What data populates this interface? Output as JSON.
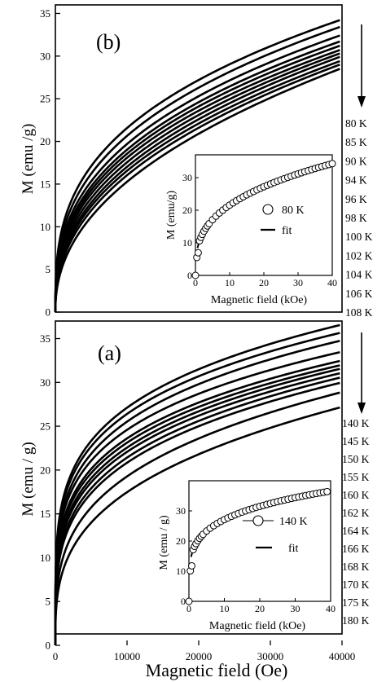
{
  "chart_data": [
    {
      "type": "line",
      "panel_label": "(b)",
      "ylabel": "M (emu /g)",
      "xlabel": "",
      "xlim": [
        0,
        40000
      ],
      "ylim": [
        0,
        36
      ],
      "yticks": [
        "0",
        "5",
        "10",
        "15",
        "20",
        "25",
        "30",
        "35"
      ],
      "xticks": [],
      "series": [
        {
          "name": "80 K",
          "values": [
            [
              0,
              0
            ],
            [
              2000,
              12.3
            ],
            [
              5000,
              17.3
            ],
            [
              10000,
              21.8
            ],
            [
              20000,
              27.2
            ],
            [
              30000,
              31.1
            ],
            [
              40000,
              34.3
            ]
          ]
        },
        {
          "name": "85 K",
          "values": [
            [
              0,
              0
            ],
            [
              2000,
              11.6
            ],
            [
              5000,
              16.5
            ],
            [
              10000,
              21.0
            ],
            [
              20000,
              26.3
            ],
            [
              30000,
              30.3
            ],
            [
              40000,
              33.5
            ]
          ]
        },
        {
          "name": "90 K",
          "values": [
            [
              0,
              0
            ],
            [
              2000,
              10.9
            ],
            [
              5000,
              15.6
            ],
            [
              10000,
              20.0
            ],
            [
              20000,
              25.3
            ],
            [
              30000,
              29.3
            ],
            [
              40000,
              32.5
            ]
          ]
        },
        {
          "name": "94 K",
          "values": [
            [
              0,
              0
            ],
            [
              2000,
              10.3
            ],
            [
              5000,
              15.0
            ],
            [
              10000,
              19.3
            ],
            [
              20000,
              24.6
            ],
            [
              30000,
              28.6
            ],
            [
              40000,
              31.8
            ]
          ]
        },
        {
          "name": "96 K",
          "values": [
            [
              0,
              0
            ],
            [
              2000,
              9.8
            ],
            [
              5000,
              14.5
            ],
            [
              10000,
              18.8
            ],
            [
              20000,
              24.1
            ],
            [
              30000,
              28.1
            ],
            [
              40000,
              31.3
            ]
          ]
        },
        {
          "name": "98 K",
          "values": [
            [
              0,
              0
            ],
            [
              2000,
              9.3
            ],
            [
              5000,
              14.0
            ],
            [
              10000,
              18.3
            ],
            [
              20000,
              23.6
            ],
            [
              30000,
              27.6
            ],
            [
              40000,
              30.8
            ]
          ]
        },
        {
          "name": "100 K",
          "values": [
            [
              0,
              0
            ],
            [
              2000,
              8.8
            ],
            [
              5000,
              13.5
            ],
            [
              10000,
              17.8
            ],
            [
              20000,
              23.1
            ],
            [
              30000,
              27.1
            ],
            [
              40000,
              30.4
            ]
          ]
        },
        {
          "name": "102 K",
          "values": [
            [
              0,
              0
            ],
            [
              2000,
              8.3
            ],
            [
              5000,
              13.0
            ],
            [
              10000,
              17.3
            ],
            [
              20000,
              22.6
            ],
            [
              30000,
              26.7
            ],
            [
              40000,
              30.0
            ]
          ]
        },
        {
          "name": "104 K",
          "values": [
            [
              0,
              0
            ],
            [
              2000,
              7.8
            ],
            [
              5000,
              12.5
            ],
            [
              10000,
              16.8
            ],
            [
              20000,
              22.1
            ],
            [
              30000,
              26.2
            ],
            [
              40000,
              29.5
            ]
          ]
        },
        {
          "name": "106 K",
          "values": [
            [
              0,
              0
            ],
            [
              2000,
              7.3
            ],
            [
              5000,
              12.0
            ],
            [
              10000,
              16.3
            ],
            [
              20000,
              21.6
            ],
            [
              30000,
              25.8
            ],
            [
              40000,
              29.1
            ]
          ]
        },
        {
          "name": "108 K",
          "values": [
            [
              0,
              0
            ],
            [
              2000,
              6.7
            ],
            [
              5000,
              11.3
            ],
            [
              10000,
              15.6
            ],
            [
              20000,
              20.9
            ],
            [
              30000,
              25.2
            ],
            [
              40000,
              28.6
            ]
          ]
        }
      ],
      "temperature_labels": [
        "80 K",
        "85 K",
        "90 K",
        "94 K",
        "96 K",
        "98 K",
        "100 K",
        "102 K",
        "104 K",
        "106 K",
        "108 K"
      ],
      "inset": {
        "xlabel": "Magnetic field (kOe)",
        "ylabel": "M (emu/g)",
        "xlim": [
          0,
          40
        ],
        "ylim": [
          0,
          37
        ],
        "xticks": [
          "0",
          "10",
          "20",
          "30",
          "40"
        ],
        "yticks": [
          "0",
          "10",
          "20",
          "30"
        ],
        "legend": {
          "marker_label": "80 K",
          "line_label": "fit"
        },
        "points_x": [
          0,
          0.4,
          0.8,
          1.2,
          1.6,
          2,
          2.5,
          3,
          3.5,
          4,
          5,
          6,
          7,
          8,
          9,
          10,
          11,
          12,
          13,
          14,
          15,
          16,
          17,
          18,
          19,
          20,
          21,
          22,
          23,
          24,
          25,
          26,
          27,
          28,
          29,
          30,
          31,
          32,
          33,
          34,
          35,
          36,
          37,
          38,
          39,
          40
        ]
      }
    },
    {
      "type": "line",
      "panel_label": "(a)",
      "ylabel": "M (emu / g)",
      "xlabel": "Magnetic field (Oe)",
      "xlim": [
        0,
        40000
      ],
      "ylim": [
        0,
        37
      ],
      "yticks": [
        "0",
        "5",
        "10",
        "15",
        "20",
        "25",
        "30",
        "35"
      ],
      "xticks": [
        "0",
        "10000",
        "20000",
        "30000",
        "40000"
      ],
      "series": [
        {
          "name": "140 K",
          "values": [
            [
              0,
              0
            ],
            [
              2000,
              17.5
            ],
            [
              5000,
              23.5
            ],
            [
              10000,
              27.5
            ],
            [
              20000,
              31.5
            ],
            [
              30000,
              34.3
            ],
            [
              40000,
              36.6
            ]
          ]
        },
        {
          "name": "145 K",
          "values": [
            [
              0,
              0
            ],
            [
              2000,
              16.3
            ],
            [
              5000,
              22.6
            ],
            [
              10000,
              26.7
            ],
            [
              20000,
              30.7
            ],
            [
              30000,
              33.5
            ],
            [
              40000,
              35.7
            ]
          ]
        },
        {
          "name": "150 K",
          "values": [
            [
              0,
              0
            ],
            [
              2000,
              15.0
            ],
            [
              5000,
              21.5
            ],
            [
              10000,
              25.8
            ],
            [
              20000,
              29.8
            ],
            [
              30000,
              32.6
            ],
            [
              40000,
              34.8
            ]
          ]
        },
        {
          "name": "155 K",
          "values": [
            [
              0,
              0
            ],
            [
              2000,
              13.8
            ],
            [
              5000,
              20.5
            ],
            [
              10000,
              24.8
            ],
            [
              20000,
              28.7
            ],
            [
              30000,
              31.4
            ],
            [
              40000,
              33.5
            ]
          ]
        },
        {
          "name": "160 K",
          "values": [
            [
              0,
              0
            ],
            [
              2000,
              12.6
            ],
            [
              5000,
              19.4
            ],
            [
              10000,
              23.8
            ],
            [
              20000,
              27.7
            ],
            [
              30000,
              30.4
            ],
            [
              40000,
              32.5
            ]
          ]
        },
        {
          "name": "162 K",
          "values": [
            [
              0,
              0
            ],
            [
              2000,
              11.9
            ],
            [
              5000,
              18.8
            ],
            [
              10000,
              23.2
            ],
            [
              20000,
              27.2
            ],
            [
              30000,
              29.9
            ],
            [
              40000,
              32.0
            ]
          ]
        },
        {
          "name": "164 K",
          "values": [
            [
              0,
              0
            ],
            [
              2000,
              11.3
            ],
            [
              5000,
              18.2
            ],
            [
              10000,
              22.7
            ],
            [
              20000,
              26.7
            ],
            [
              30000,
              29.4
            ],
            [
              40000,
              31.6
            ]
          ]
        },
        {
          "name": "166 K",
          "values": [
            [
              0,
              0
            ],
            [
              2000,
              10.7
            ],
            [
              5000,
              17.6
            ],
            [
              10000,
              22.1
            ],
            [
              20000,
              26.2
            ],
            [
              30000,
              28.9
            ],
            [
              40000,
              31.1
            ]
          ]
        },
        {
          "name": "168 K",
          "values": [
            [
              0,
              0
            ],
            [
              2000,
              10.0
            ],
            [
              5000,
              16.9
            ],
            [
              10000,
              21.5
            ],
            [
              20000,
              25.6
            ],
            [
              30000,
              28.4
            ],
            [
              40000,
              30.6
            ]
          ]
        },
        {
          "name": "170 K",
          "values": [
            [
              0,
              0
            ],
            [
              2000,
              9.3
            ],
            [
              5000,
              16.2
            ],
            [
              10000,
              20.8
            ],
            [
              20000,
              25.0
            ],
            [
              30000,
              27.8
            ],
            [
              40000,
              30.0
            ]
          ]
        },
        {
          "name": "175 K",
          "values": [
            [
              0,
              0
            ],
            [
              2000,
              8.0
            ],
            [
              5000,
              14.5
            ],
            [
              10000,
              19.3
            ],
            [
              20000,
              23.6
            ],
            [
              30000,
              26.6
            ],
            [
              40000,
              28.9
            ]
          ]
        },
        {
          "name": "180 K",
          "values": [
            [
              0,
              0
            ],
            [
              2000,
              6.5
            ],
            [
              5000,
              12.5
            ],
            [
              10000,
              17.5
            ],
            [
              20000,
              21.8
            ],
            [
              30000,
              24.9
            ],
            [
              40000,
              27.2
            ]
          ]
        }
      ],
      "temperature_labels": [
        "140 K",
        "145 K",
        "150 K",
        "155 K",
        "160 K",
        "162 K",
        "164 K",
        "166 K",
        "168 K",
        "170 K",
        "175 K",
        "180 K"
      ],
      "inset": {
        "xlabel": "Magnetic field (kOe)",
        "ylabel": "M (emu / g)",
        "xlim": [
          0,
          40
        ],
        "ylim": [
          0,
          40
        ],
        "xticks": [
          "0",
          "10",
          "20",
          "30",
          "40"
        ],
        "yticks": [
          "0",
          "10",
          "20",
          "30"
        ],
        "legend": {
          "marker_label": "140 K",
          "line_label": "fit"
        },
        "points_x": [
          0,
          0.4,
          0.8,
          1.2,
          1.6,
          2,
          2.5,
          3,
          3.5,
          4,
          5,
          6,
          7,
          8,
          9,
          10,
          11,
          12,
          13,
          14,
          15,
          16,
          17,
          18,
          19,
          20,
          21,
          22,
          23,
          24,
          25,
          26,
          27,
          28,
          29,
          30,
          31,
          32,
          33,
          34,
          35,
          36,
          37,
          38,
          39
        ]
      }
    }
  ]
}
